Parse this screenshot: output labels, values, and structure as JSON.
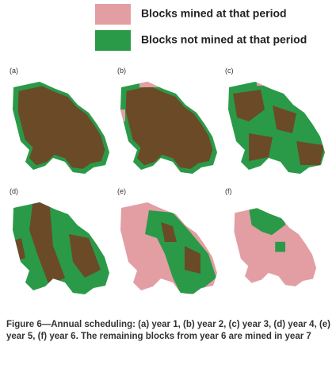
{
  "legend": {
    "items": [
      {
        "label": "Blocks mined at that period",
        "color": "#e39ea3"
      },
      {
        "label": "Blocks not mined at that period",
        "color": "#2a9a48"
      }
    ]
  },
  "panels": [
    {
      "label": "(a)"
    },
    {
      "label": "(b)"
    },
    {
      "label": "(c)"
    },
    {
      "label": "(d)"
    },
    {
      "label": "(e)"
    },
    {
      "label": "(f)"
    }
  ],
  "caption": "Figure 6—Annual scheduling: (a) year 1, (b) year 2, (c) year 3, (d) year 4, (e) year 5, (f) year 6. The remaining blocks from year 6 are mined in year 7"
}
